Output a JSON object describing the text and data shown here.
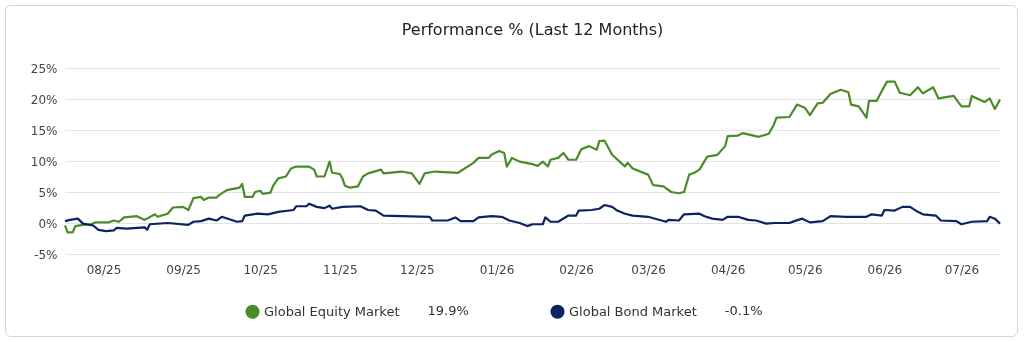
{
  "chart_data": {
    "type": "line",
    "title": "Performance % (Last 12 Months)",
    "xlim": [
      "2025-07-17",
      "2026-07-16"
    ],
    "xticks": [
      {
        "value": "2025-08-01",
        "label": "08/25"
      },
      {
        "value": "2025-09-01",
        "label": "09/25"
      },
      {
        "value": "2025-10-01",
        "label": "10/25"
      },
      {
        "value": "2025-11-01",
        "label": "11/25"
      },
      {
        "value": "2025-12-01",
        "label": "12/25"
      },
      {
        "value": "2026-01-01",
        "label": "01/26"
      },
      {
        "value": "2026-02-01",
        "label": "02/26"
      },
      {
        "value": "2026-03-01",
        "label": "03/26"
      },
      {
        "value": "2026-04-01",
        "label": "04/26"
      },
      {
        "value": "2026-05-01",
        "label": "05/26"
      },
      {
        "value": "2026-06-01",
        "label": "06/26"
      },
      {
        "value": "2026-07-01",
        "label": "07/26"
      }
    ],
    "ylim": [
      -5,
      25
    ],
    "yticks": [
      {
        "value": -5,
        "label": "-5%"
      },
      {
        "value": 0,
        "label": "0%"
      },
      {
        "value": 5,
        "label": "5%"
      },
      {
        "value": 10,
        "label": "10%"
      },
      {
        "value": 15,
        "label": "15%"
      },
      {
        "value": 20,
        "label": "20%"
      },
      {
        "value": 25,
        "label": "25%"
      }
    ],
    "grid": "y",
    "legend": "bottom",
    "marker": "none",
    "line_style": "solid",
    "annotations": [
      "19.9%",
      "-0.1%"
    ],
    "series": [
      {
        "name": "Global Equity Market",
        "color": "#4a8c2a",
        "x": [
          "2025-07-17",
          "2025-07-18",
          "2025-07-20",
          "2025-07-21",
          "2025-07-24",
          "2025-07-27",
          "2025-07-29",
          "2025-08-03",
          "2025-08-05",
          "2025-08-07",
          "2025-08-09",
          "2025-08-14",
          "2025-08-17",
          "2025-08-21",
          "2025-08-22",
          "2025-08-26",
          "2025-08-28",
          "2025-09-01",
          "2025-09-03",
          "2025-09-05",
          "2025-09-08",
          "2025-09-09",
          "2025-09-11",
          "2025-09-14",
          "2025-09-15",
          "2025-09-18",
          "2025-09-23",
          "2025-09-24",
          "2025-09-25",
          "2025-09-28",
          "2025-09-29",
          "2025-10-01",
          "2025-10-02",
          "2025-10-05",
          "2025-10-06",
          "2025-10-08",
          "2025-10-11",
          "2025-10-13",
          "2025-10-15",
          "2025-10-20",
          "2025-10-22",
          "2025-10-23",
          "2025-10-26",
          "2025-10-28",
          "2025-10-29",
          "2025-11-01",
          "2025-11-02",
          "2025-11-03",
          "2025-11-05",
          "2025-11-08",
          "2025-11-10",
          "2025-11-12",
          "2025-11-17",
          "2025-11-18",
          "2025-11-25",
          "2025-11-29",
          "2025-12-02",
          "2025-12-04",
          "2025-12-08",
          "2025-12-17",
          "2025-12-23",
          "2025-12-25",
          "2025-12-29",
          "2025-12-30",
          "2026-01-02",
          "2026-01-04",
          "2026-01-05",
          "2026-01-07",
          "2026-01-10",
          "2026-01-15",
          "2026-01-17",
          "2026-01-19",
          "2026-01-21",
          "2026-01-22",
          "2026-01-25",
          "2026-01-27",
          "2026-01-29",
          "2026-02-01",
          "2026-02-03",
          "2026-02-06",
          "2026-02-09",
          "2026-02-10",
          "2026-02-12",
          "2026-02-15",
          "2026-02-19",
          "2026-02-20",
          "2026-02-21",
          "2026-02-23",
          "2026-03-01",
          "2026-03-03",
          "2026-03-07",
          "2026-03-10",
          "2026-03-13",
          "2026-03-15",
          "2026-03-17",
          "2026-03-19",
          "2026-03-21",
          "2026-03-24",
          "2026-03-28",
          "2026-03-31",
          "2026-04-01",
          "2026-04-05",
          "2026-04-07",
          "2026-04-13",
          "2026-04-17",
          "2026-04-19",
          "2026-04-20",
          "2026-04-25",
          "2026-04-28",
          "2026-05-01",
          "2026-05-03",
          "2026-05-06",
          "2026-05-08",
          "2026-05-11",
          "2026-05-15",
          "2026-05-18",
          "2026-05-19",
          "2026-05-22",
          "2026-05-25",
          "2026-05-26",
          "2026-05-29",
          "2026-05-31",
          "2026-06-02",
          "2026-06-05",
          "2026-06-07",
          "2026-06-11",
          "2026-06-14",
          "2026-06-16",
          "2026-06-20",
          "2026-06-22",
          "2026-06-28",
          "2026-07-01",
          "2026-07-04",
          "2026-07-05",
          "2026-07-10",
          "2026-07-12",
          "2026-07-14",
          "2026-07-16"
        ],
        "values": [
          -0.4,
          -1.5,
          -1.5,
          -0.5,
          -0.3,
          -0.2,
          0.1,
          0.1,
          0.4,
          0.2,
          0.9,
          1.1,
          0.5,
          1.4,
          1.0,
          1.5,
          2.5,
          2.6,
          2.1,
          4.0,
          4.2,
          3.7,
          4.1,
          4.1,
          4.5,
          5.3,
          5.7,
          6.3,
          4.2,
          4.2,
          5.0,
          5.2,
          4.7,
          4.9,
          6.0,
          7.2,
          7.5,
          8.8,
          9.1,
          9.1,
          8.6,
          7.5,
          7.5,
          9.9,
          8.1,
          7.9,
          7.2,
          6.0,
          5.7,
          5.9,
          7.5,
          8.0,
          8.6,
          8.0,
          8.3,
          8.0,
          6.3,
          8.0,
          8.3,
          8.1,
          9.7,
          10.5,
          10.5,
          11.0,
          11.6,
          11.3,
          9.1,
          10.5,
          9.9,
          9.5,
          9.2,
          9.9,
          9.1,
          10.2,
          10.5,
          11.3,
          10.2,
          10.2,
          11.9,
          12.4,
          11.8,
          13.2,
          13.3,
          11.0,
          9.5,
          9.1,
          9.7,
          8.8,
          7.8,
          6.1,
          5.9,
          5.0,
          4.8,
          5.0,
          7.8,
          8.1,
          8.6,
          10.7,
          11.0,
          12.4,
          14.0,
          14.1,
          14.5,
          13.9,
          14.4,
          15.9,
          17.0,
          17.1,
          19.1,
          18.6,
          17.4,
          19.3,
          19.4,
          20.8,
          21.5,
          21.1,
          19.1,
          18.8,
          17.0,
          19.7,
          19.7,
          21.3,
          22.8,
          22.8,
          21.0,
          20.6,
          21.9,
          20.9,
          21.9,
          20.1,
          20.5,
          18.8,
          18.8,
          20.5,
          19.5,
          20.1,
          18.4,
          19.9
        ]
      },
      {
        "name": "Global Bond Market",
        "color": "#0d2260",
        "x": [
          "2025-07-17",
          "2025-07-19",
          "2025-07-22",
          "2025-07-24",
          "2025-07-28",
          "2025-07-30",
          "2025-08-02",
          "2025-08-05",
          "2025-08-06",
          "2025-08-10",
          "2025-08-17",
          "2025-08-18",
          "2025-08-19",
          "2025-08-26",
          "2025-09-03",
          "2025-09-05",
          "2025-09-08",
          "2025-09-11",
          "2025-09-14",
          "2025-09-16",
          "2025-09-22",
          "2025-09-24",
          "2025-09-25",
          "2025-09-30",
          "2025-10-04",
          "2025-10-08",
          "2025-10-14",
          "2025-10-15",
          "2025-10-19",
          "2025-10-20",
          "2025-10-23",
          "2025-10-26",
          "2025-10-28",
          "2025-10-29",
          "2025-11-02",
          "2025-11-09",
          "2025-11-12",
          "2025-11-15",
          "2025-11-18",
          "2025-11-25",
          "2025-12-06",
          "2025-12-07",
          "2025-12-13",
          "2025-12-16",
          "2025-12-18",
          "2025-12-23",
          "2025-12-25",
          "2025-12-30",
          "2026-01-03",
          "2026-01-06",
          "2026-01-10",
          "2026-01-13",
          "2026-01-15",
          "2026-01-19",
          "2026-01-20",
          "2026-01-22",
          "2026-01-25",
          "2026-01-29",
          "2026-02-01",
          "2026-02-02",
          "2026-02-07",
          "2026-02-10",
          "2026-02-12",
          "2026-02-15",
          "2026-02-17",
          "2026-02-20",
          "2026-02-23",
          "2026-03-01",
          "2026-03-08",
          "2026-03-09",
          "2026-03-13",
          "2026-03-15",
          "2026-03-21",
          "2026-03-23",
          "2026-03-26",
          "2026-03-30",
          "2026-04-01",
          "2026-04-05",
          "2026-04-09",
          "2026-04-12",
          "2026-04-16",
          "2026-04-19",
          "2026-04-25",
          "2026-04-27",
          "2026-04-30",
          "2026-05-03",
          "2026-05-08",
          "2026-05-11",
          "2026-05-17",
          "2026-05-25",
          "2026-05-27",
          "2026-05-31",
          "2026-06-01",
          "2026-06-05",
          "2026-06-08",
          "2026-06-11",
          "2026-06-14",
          "2026-06-16",
          "2026-06-21",
          "2026-06-23",
          "2026-06-29",
          "2026-07-01",
          "2026-07-03",
          "2026-07-05",
          "2026-07-11",
          "2026-07-12",
          "2026-07-14",
          "2026-07-16"
        ],
        "values": [
          0.3,
          0.5,
          0.7,
          -0.1,
          -0.4,
          -1.1,
          -1.3,
          -1.2,
          -0.8,
          -0.9,
          -0.7,
          -1.1,
          -0.2,
          0.0,
          -0.3,
          0.2,
          0.3,
          0.7,
          0.4,
          1.0,
          0.2,
          0.3,
          1.2,
          1.5,
          1.4,
          1.8,
          2.1,
          2.7,
          2.7,
          3.1,
          2.6,
          2.4,
          2.8,
          2.3,
          2.6,
          2.7,
          2.1,
          2.0,
          1.2,
          1.1,
          1.0,
          0.4,
          0.4,
          0.9,
          0.3,
          0.3,
          0.9,
          1.1,
          1.0,
          0.4,
          0.0,
          -0.5,
          -0.2,
          -0.2,
          0.9,
          0.2,
          0.2,
          1.2,
          1.2,
          2.0,
          2.1,
          2.3,
          2.9,
          2.6,
          2.0,
          1.5,
          1.2,
          1.0,
          0.2,
          0.5,
          0.4,
          1.4,
          1.5,
          1.1,
          0.7,
          0.5,
          1.0,
          1.0,
          0.5,
          0.4,
          -0.1,
          0.0,
          0.0,
          0.3,
          0.7,
          0.1,
          0.3,
          1.1,
          1.0,
          1.0,
          1.4,
          1.2,
          2.1,
          2.0,
          2.6,
          2.6,
          1.8,
          1.4,
          1.2,
          0.4,
          0.3,
          -0.2,
          0.0,
          0.2,
          0.3,
          1.0,
          0.7,
          -0.1
        ]
      }
    ]
  }
}
